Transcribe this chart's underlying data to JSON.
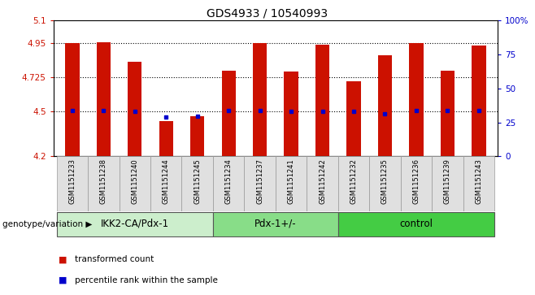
{
  "title": "GDS4933 / 10540993",
  "samples": [
    "GSM1151233",
    "GSM1151238",
    "GSM1151240",
    "GSM1151244",
    "GSM1151245",
    "GSM1151234",
    "GSM1151237",
    "GSM1151241",
    "GSM1151242",
    "GSM1151232",
    "GSM1151235",
    "GSM1151236",
    "GSM1151239",
    "GSM1151243"
  ],
  "red_values": [
    4.95,
    4.955,
    4.83,
    4.435,
    4.465,
    4.77,
    4.95,
    4.76,
    4.94,
    4.7,
    4.87,
    4.95,
    4.77,
    4.935
  ],
  "blue_values": [
    4.502,
    4.502,
    4.501,
    4.462,
    4.468,
    4.502,
    4.502,
    4.501,
    4.501,
    4.501,
    4.482,
    4.502,
    4.502,
    4.502
  ],
  "y_min": 4.2,
  "y_max": 5.1,
  "y_ticks": [
    4.2,
    4.5,
    4.725,
    4.95,
    5.1
  ],
  "y_tick_labels": [
    "4.2",
    "4.5",
    "4.725",
    "4.95",
    "5.1"
  ],
  "right_y_ticks": [
    0,
    25,
    50,
    75,
    100
  ],
  "right_y_tick_labels": [
    "0",
    "25",
    "50",
    "75",
    "100%"
  ],
  "dotted_lines": [
    4.5,
    4.725,
    4.95
  ],
  "groups": [
    {
      "label": "IKK2-CA/Pdx-1",
      "start": 0,
      "end": 5
    },
    {
      "label": "Pdx-1+/-",
      "start": 5,
      "end": 9
    },
    {
      "label": "control",
      "start": 9,
      "end": 14
    }
  ],
  "group_colors": [
    "#cceecc",
    "#88dd88",
    "#44cc44"
  ],
  "bar_color": "#cc1100",
  "blue_color": "#0000cc",
  "bar_width": 0.45,
  "xlabel_color": "#cc1100",
  "right_ylabel_color": "#0000cc",
  "legend_red": "transformed count",
  "legend_blue": "percentile rank within the sample",
  "genotype_label": "genotype/variation"
}
